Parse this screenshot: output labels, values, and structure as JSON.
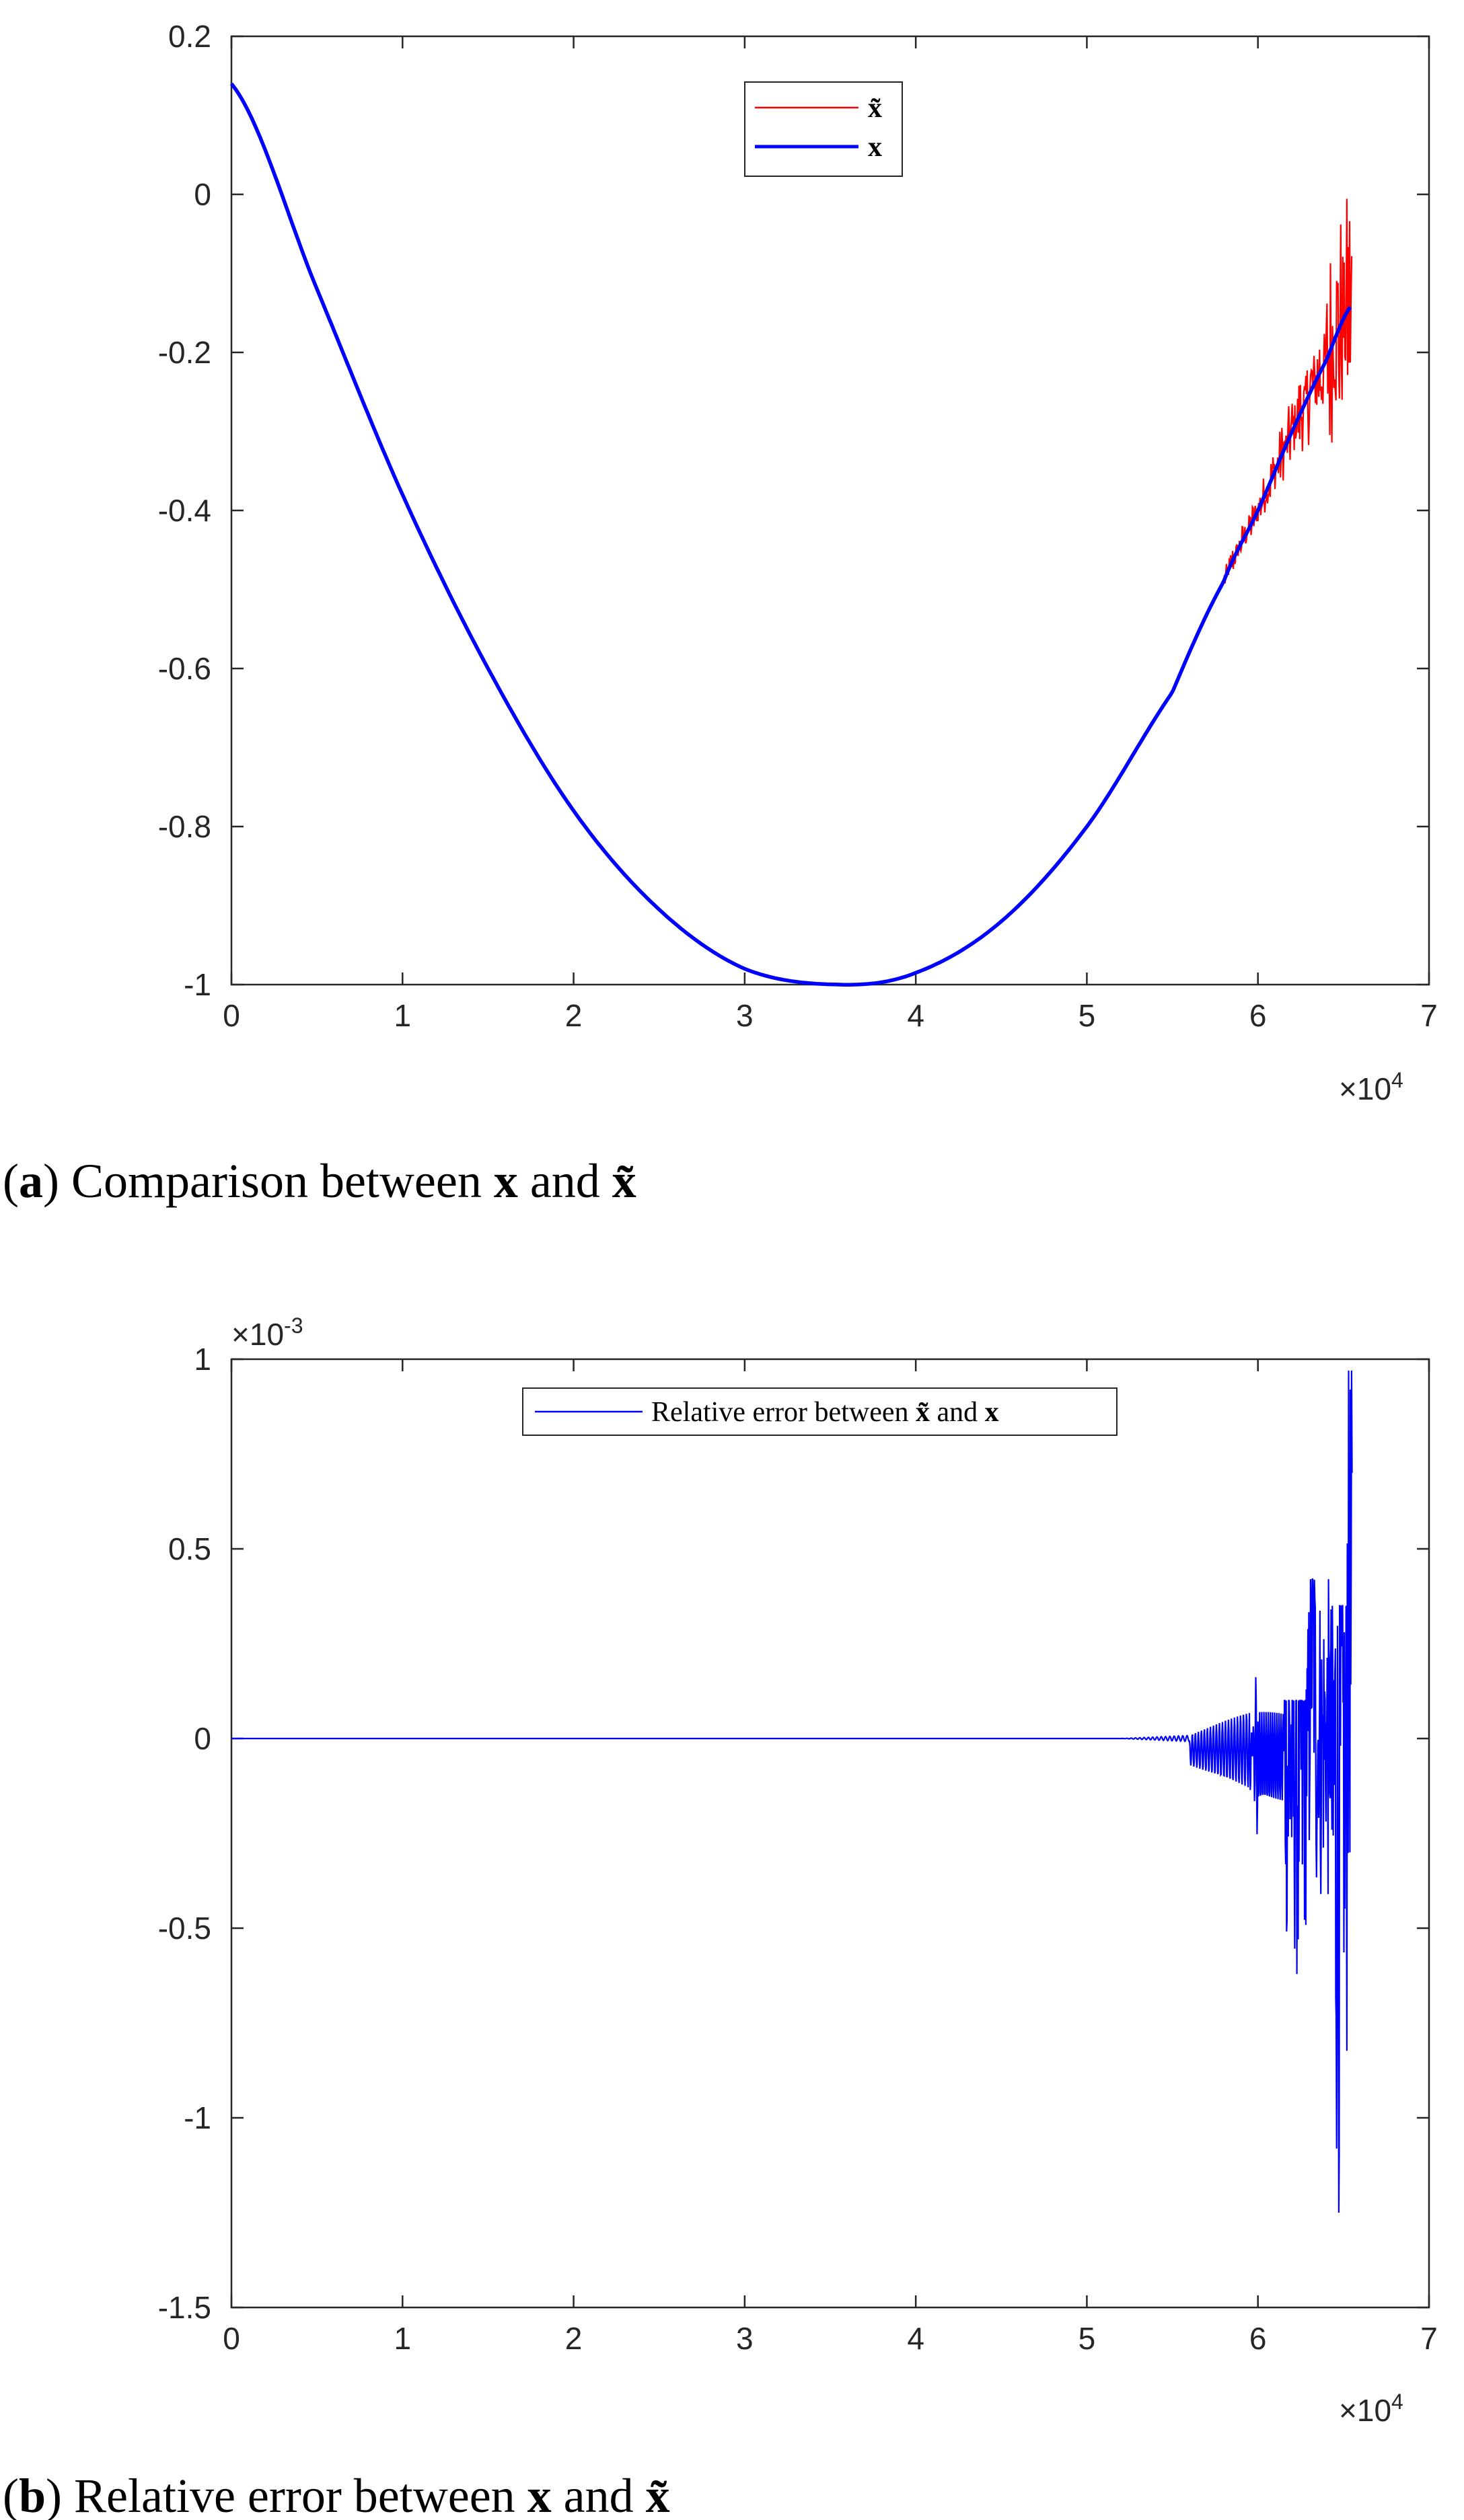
{
  "chart_data": [
    {
      "type": "line",
      "caption": {
        "open": "(",
        "letter": "a",
        "text": ") Comparison between ",
        "v1": "x",
        "mid": " and ",
        "v2": "x̃"
      },
      "xlim": [
        0,
        70000
      ],
      "ylim": [
        -1,
        0.2
      ],
      "x_ticks": [
        0,
        1,
        2,
        3,
        4,
        5,
        6,
        7
      ],
      "x_tick_labels": [
        "0",
        "1",
        "2",
        "3",
        "4",
        "5",
        "6",
        "7"
      ],
      "x_multiplier": "×10",
      "x_multiplier_exp": "4",
      "y_ticks": [
        -1,
        -0.8,
        -0.6,
        -0.4,
        -0.2,
        0,
        0.2
      ],
      "y_tick_labels": [
        "-1",
        "-0.8",
        "-0.6",
        "-0.4",
        "-0.2",
        "0",
        "0.2"
      ],
      "grid": false,
      "legend_position": "top-center",
      "series": [
        {
          "name": "x̃",
          "color": "#ff0000",
          "description": "noisy reconstruction, coincides with x except near the end",
          "x": [
            58000,
            59000,
            60000,
            61000,
            62000,
            63000,
            64000,
            65000,
            65500
          ],
          "values": [
            -0.49,
            -0.43,
            -0.38,
            -0.36,
            -0.39,
            -0.2,
            -0.22,
            -0.28,
            0.03
          ]
        },
        {
          "name": "x",
          "color": "#0000ff",
          "x": [
            0,
            5000,
            10000,
            15000,
            20000,
            25000,
            30000,
            35500,
            40000,
            45000,
            50000,
            55000,
            58000,
            60000,
            62000,
            64000,
            65500
          ],
          "values": [
            0.14,
            -0.12,
            -0.38,
            -0.6,
            -0.78,
            -0.905,
            -0.98,
            -1.0,
            -0.985,
            -0.92,
            -0.8,
            -0.63,
            -0.49,
            -0.4,
            -0.3,
            -0.21,
            -0.14
          ]
        }
      ]
    },
    {
      "type": "line",
      "caption": {
        "open": "(",
        "letter": "b",
        "text": ") Relative error between ",
        "v1": "x",
        "mid": " and ",
        "v2": "x̃"
      },
      "xlim": [
        0,
        70000
      ],
      "ylim": [
        -1.5,
        1
      ],
      "x_ticks": [
        0,
        1,
        2,
        3,
        4,
        5,
        6,
        7
      ],
      "x_tick_labels": [
        "0",
        "1",
        "2",
        "3",
        "4",
        "5",
        "6",
        "7"
      ],
      "x_multiplier": "×10",
      "x_multiplier_exp": "4",
      "y_ticks": [
        -1.5,
        -1,
        -0.5,
        0,
        0.5,
        1
      ],
      "y_tick_labels": [
        "-1.5",
        "-1",
        "-0.5",
        "0",
        "0.5",
        "1"
      ],
      "y_multiplier": "×10",
      "y_multiplier_exp": "-3",
      "grid": false,
      "legend_position": "top-center",
      "legend_label": {
        "pre": "Relative error between ",
        "v1": "x̃",
        "mid": " and ",
        "v2": "x"
      },
      "series": [
        {
          "name": "Relative error between x̃ and x",
          "color": "#0000ff",
          "x": [
            0,
            54000,
            55000,
            57000,
            58500,
            60000,
            61000,
            62000,
            63000,
            64000,
            65000,
            65500
          ],
          "values": [
            0,
            0,
            0.01,
            -0.07,
            -0.11,
            0.15,
            -0.3,
            -0.8,
            0.42,
            -0.6,
            -1.25,
            0.97
          ]
        }
      ]
    }
  ]
}
